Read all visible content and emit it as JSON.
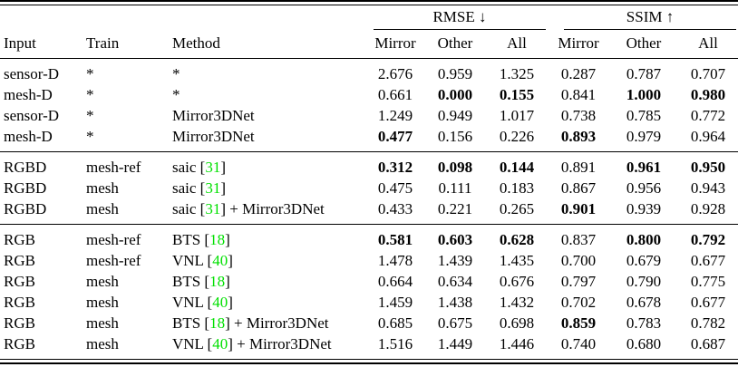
{
  "table": {
    "group_headers": [
      {
        "label": "RMSE ↓"
      },
      {
        "label": "SSIM ↑"
      }
    ],
    "columns": {
      "input": "Input",
      "train": "Train",
      "method": "Method",
      "rmse_mirror": "Mirror",
      "rmse_other": "Other",
      "rmse_all": "All",
      "ssim_mirror": "Mirror",
      "ssim_other": "Other",
      "ssim_all": "All"
    },
    "colors": {
      "citation_green": "#00e000",
      "text": "#000000"
    },
    "sections": [
      {
        "rows": [
          {
            "input": "sensor-D",
            "train": "*",
            "method": {
              "pre": "*",
              "cite": "",
              "post": ""
            },
            "values": [
              {
                "v": "2.676",
                "b": false
              },
              {
                "v": "0.959",
                "b": false
              },
              {
                "v": "1.325",
                "b": false
              },
              {
                "v": "0.287",
                "b": false
              },
              {
                "v": "0.787",
                "b": false
              },
              {
                "v": "0.707",
                "b": false
              }
            ]
          },
          {
            "input": "mesh-D",
            "train": "*",
            "method": {
              "pre": "*",
              "cite": "",
              "post": ""
            },
            "values": [
              {
                "v": "0.661",
                "b": false
              },
              {
                "v": "0.000",
                "b": true
              },
              {
                "v": "0.155",
                "b": true
              },
              {
                "v": "0.841",
                "b": false
              },
              {
                "v": "1.000",
                "b": true
              },
              {
                "v": "0.980",
                "b": true
              }
            ]
          },
          {
            "input": "sensor-D",
            "train": "*",
            "method": {
              "pre": "Mirror3DNet",
              "cite": "",
              "post": ""
            },
            "values": [
              {
                "v": "1.249",
                "b": false
              },
              {
                "v": "0.949",
                "b": false
              },
              {
                "v": "1.017",
                "b": false
              },
              {
                "v": "0.738",
                "b": false
              },
              {
                "v": "0.785",
                "b": false
              },
              {
                "v": "0.772",
                "b": false
              }
            ]
          },
          {
            "input": "mesh-D",
            "train": "*",
            "method": {
              "pre": "Mirror3DNet",
              "cite": "",
              "post": ""
            },
            "values": [
              {
                "v": "0.477",
                "b": true
              },
              {
                "v": "0.156",
                "b": false
              },
              {
                "v": "0.226",
                "b": false
              },
              {
                "v": "0.893",
                "b": true
              },
              {
                "v": "0.979",
                "b": false
              },
              {
                "v": "0.964",
                "b": false
              }
            ]
          }
        ]
      },
      {
        "rows": [
          {
            "input": "RGBD",
            "train": "mesh-ref",
            "method": {
              "pre": "saic [",
              "cite": "31",
              "post": "]"
            },
            "values": [
              {
                "v": "0.312",
                "b": true
              },
              {
                "v": "0.098",
                "b": true
              },
              {
                "v": "0.144",
                "b": true
              },
              {
                "v": "0.891",
                "b": false
              },
              {
                "v": "0.961",
                "b": true
              },
              {
                "v": "0.950",
                "b": true
              }
            ]
          },
          {
            "input": "RGBD",
            "train": "mesh",
            "method": {
              "pre": "saic [",
              "cite": "31",
              "post": "]"
            },
            "values": [
              {
                "v": "0.475",
                "b": false
              },
              {
                "v": "0.111",
                "b": false
              },
              {
                "v": "0.183",
                "b": false
              },
              {
                "v": "0.867",
                "b": false
              },
              {
                "v": "0.956",
                "b": false
              },
              {
                "v": "0.943",
                "b": false
              }
            ]
          },
          {
            "input": "RGBD",
            "train": "mesh",
            "method": {
              "pre": "saic [",
              "cite": "31",
              "post": "] + Mirror3DNet"
            },
            "values": [
              {
                "v": "0.433",
                "b": false
              },
              {
                "v": "0.221",
                "b": false
              },
              {
                "v": "0.265",
                "b": false
              },
              {
                "v": "0.901",
                "b": true
              },
              {
                "v": "0.939",
                "b": false
              },
              {
                "v": "0.928",
                "b": false
              }
            ]
          }
        ]
      },
      {
        "rows": [
          {
            "input": "RGB",
            "train": "mesh-ref",
            "method": {
              "pre": "BTS [",
              "cite": "18",
              "post": "]"
            },
            "values": [
              {
                "v": "0.581",
                "b": true
              },
              {
                "v": "0.603",
                "b": true
              },
              {
                "v": "0.628",
                "b": true
              },
              {
                "v": "0.837",
                "b": false
              },
              {
                "v": "0.800",
                "b": true
              },
              {
                "v": "0.792",
                "b": true
              }
            ]
          },
          {
            "input": "RGB",
            "train": "mesh-ref",
            "method": {
              "pre": "VNL [",
              "cite": "40",
              "post": "]"
            },
            "values": [
              {
                "v": "1.478",
                "b": false
              },
              {
                "v": "1.439",
                "b": false
              },
              {
                "v": "1.435",
                "b": false
              },
              {
                "v": "0.700",
                "b": false
              },
              {
                "v": "0.679",
                "b": false
              },
              {
                "v": "0.677",
                "b": false
              }
            ]
          },
          {
            "input": "RGB",
            "train": "mesh",
            "method": {
              "pre": "BTS [",
              "cite": "18",
              "post": "]"
            },
            "values": [
              {
                "v": "0.664",
                "b": false
              },
              {
                "v": "0.634",
                "b": false
              },
              {
                "v": "0.676",
                "b": false
              },
              {
                "v": "0.797",
                "b": false
              },
              {
                "v": "0.790",
                "b": false
              },
              {
                "v": "0.775",
                "b": false
              }
            ]
          },
          {
            "input": "RGB",
            "train": "mesh",
            "method": {
              "pre": "VNL [",
              "cite": "40",
              "post": "]"
            },
            "values": [
              {
                "v": "1.459",
                "b": false
              },
              {
                "v": "1.438",
                "b": false
              },
              {
                "v": "1.432",
                "b": false
              },
              {
                "v": "0.702",
                "b": false
              },
              {
                "v": "0.678",
                "b": false
              },
              {
                "v": "0.677",
                "b": false
              }
            ]
          },
          {
            "input": "RGB",
            "train": "mesh",
            "method": {
              "pre": "BTS [",
              "cite": "18",
              "post": "] + Mirror3DNet"
            },
            "values": [
              {
                "v": "0.685",
                "b": false
              },
              {
                "v": "0.675",
                "b": false
              },
              {
                "v": "0.698",
                "b": false
              },
              {
                "v": "0.859",
                "b": true
              },
              {
                "v": "0.783",
                "b": false
              },
              {
                "v": "0.782",
                "b": false
              }
            ]
          },
          {
            "input": "RGB",
            "train": "mesh",
            "method": {
              "pre": "VNL [",
              "cite": "40",
              "post": "] + Mirror3DNet"
            },
            "values": [
              {
                "v": "1.516",
                "b": false
              },
              {
                "v": "1.449",
                "b": false
              },
              {
                "v": "1.446",
                "b": false
              },
              {
                "v": "0.740",
                "b": false
              },
              {
                "v": "0.680",
                "b": false
              },
              {
                "v": "0.687",
                "b": false
              }
            ]
          }
        ]
      }
    ]
  }
}
